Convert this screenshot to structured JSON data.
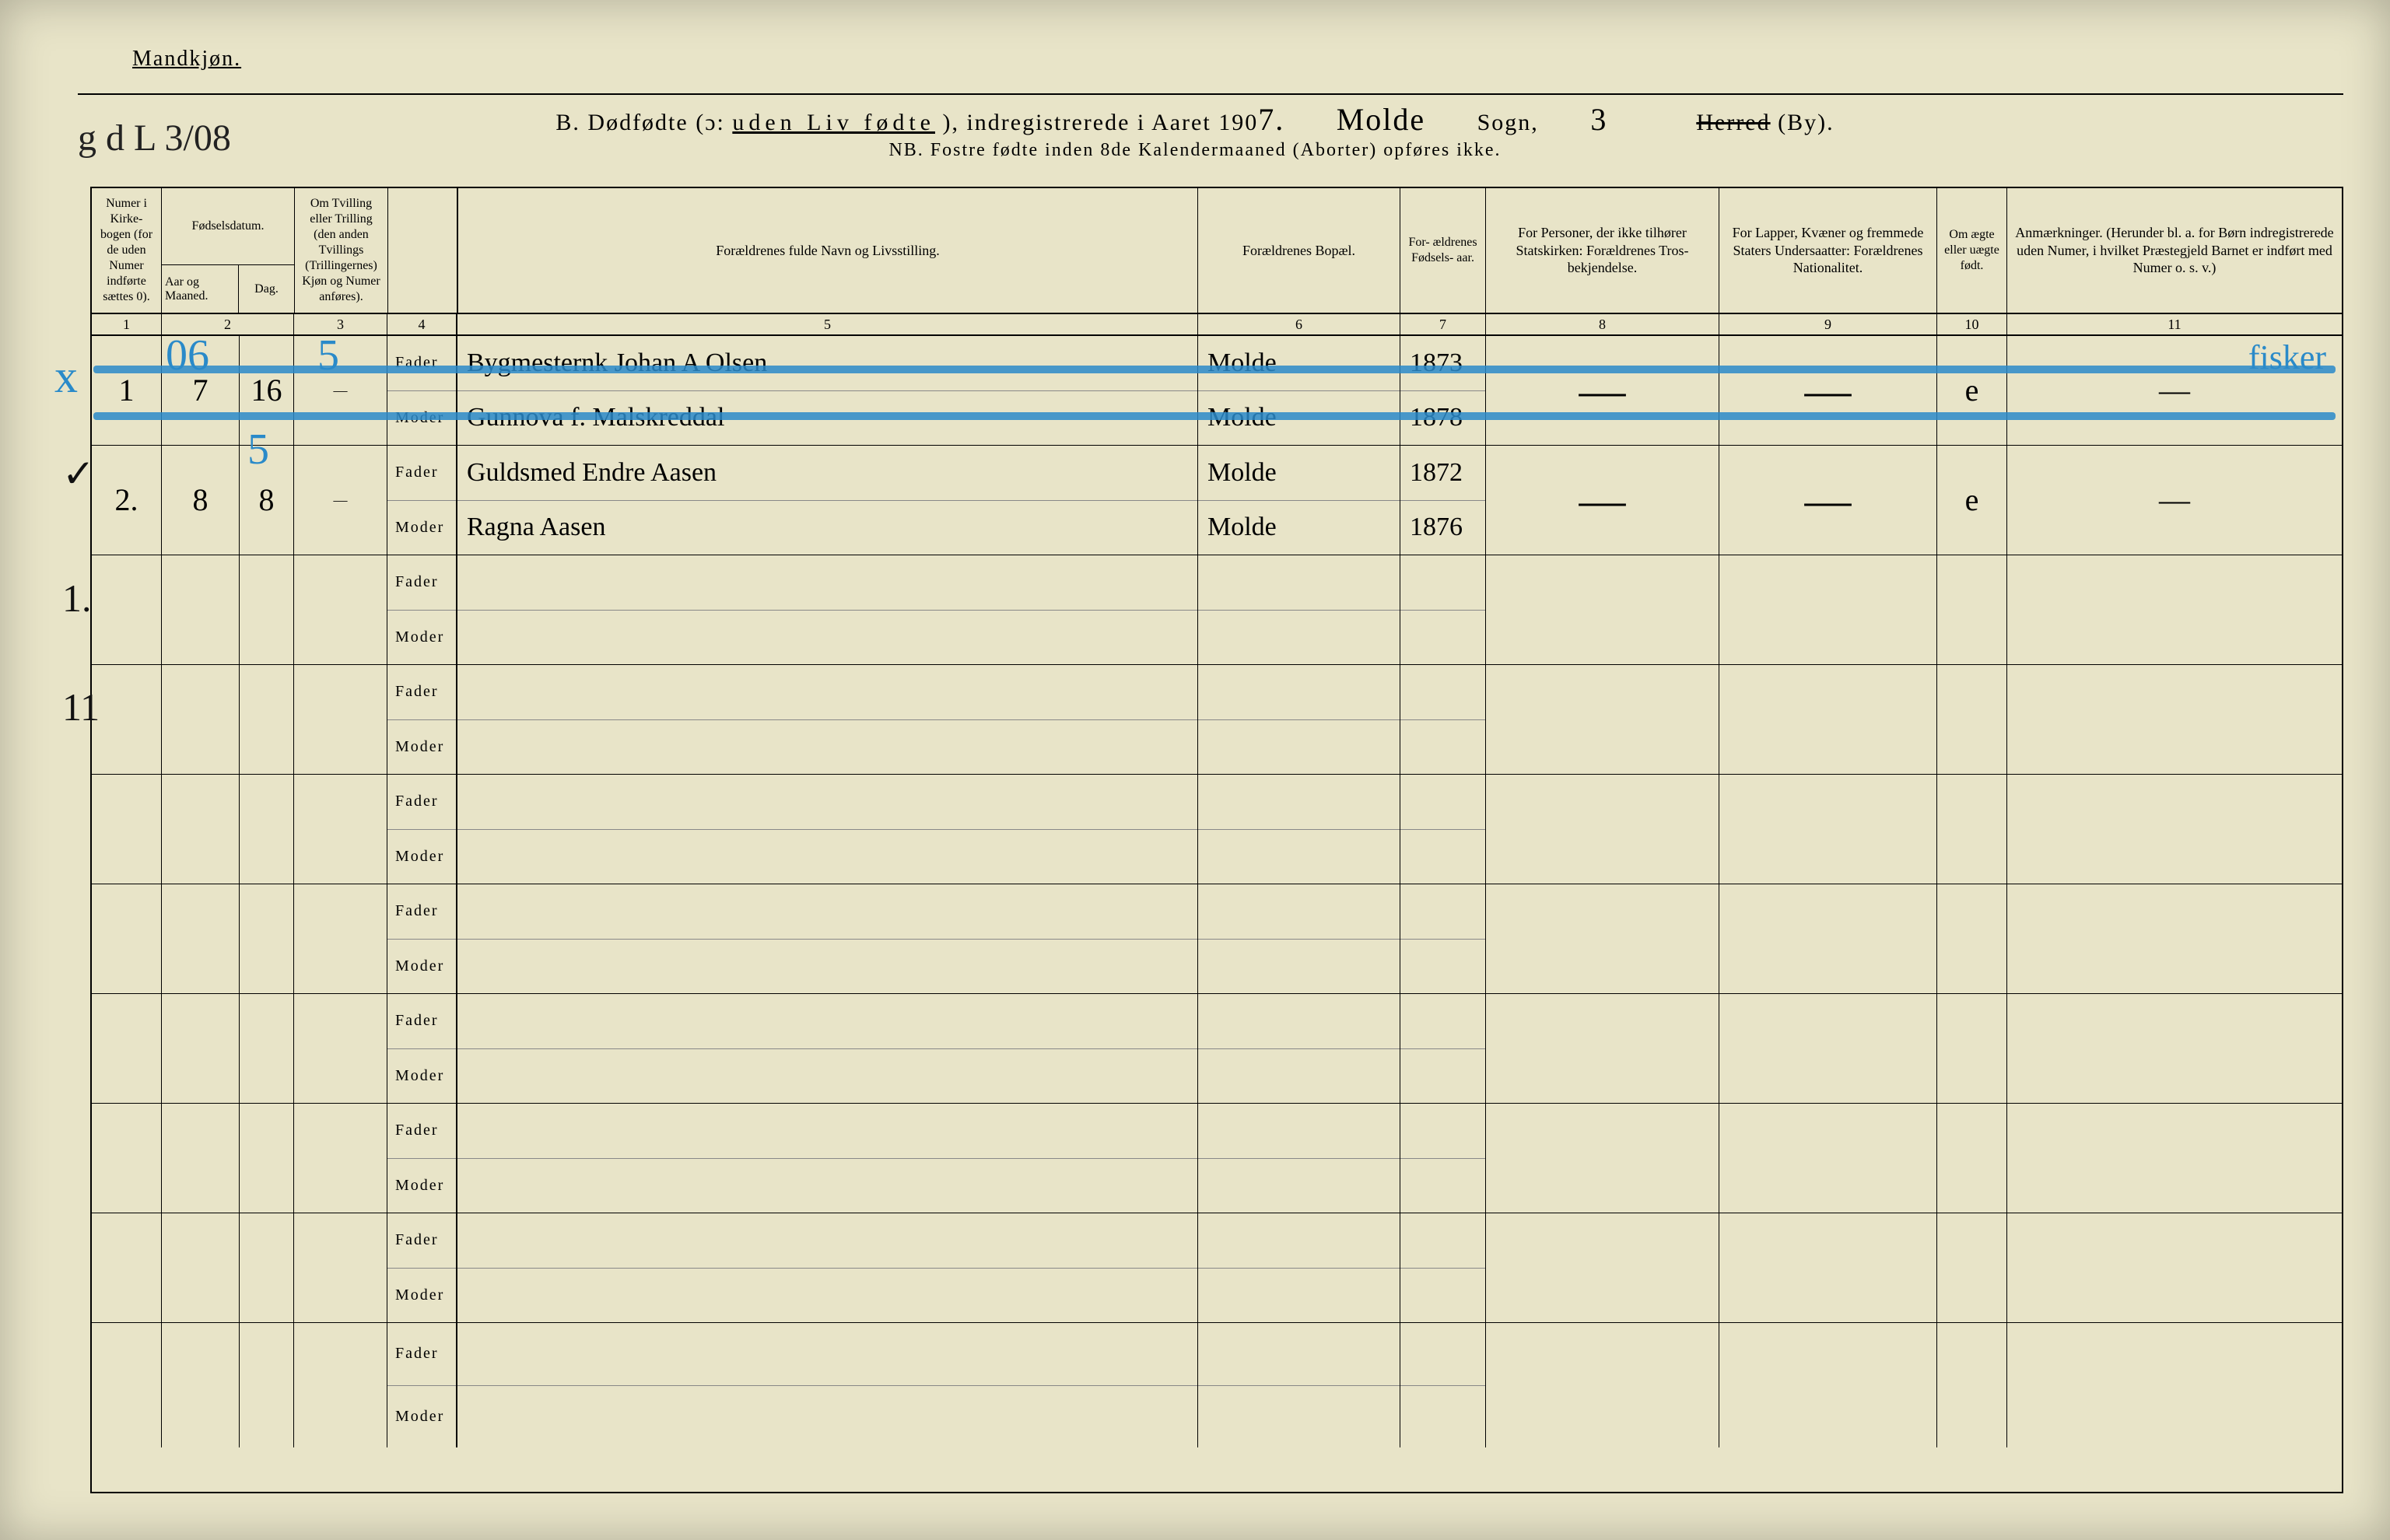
{
  "page": {
    "background_color": "#e8e4c8",
    "ink_color": "#000000",
    "blue_pencil_color": "#2a8ac9",
    "heading_gender": "Mandkjøn.",
    "title_prefix": "B.   Dødfødte (ɔ: ",
    "title_spaced": "uden Liv fødte",
    "title_mid": "), indregistrerede i Aaret 190",
    "title_year_hw": "7.",
    "title_parish_hw": "Molde",
    "title_sogn": "Sogn,",
    "title_num_hw": "3",
    "title_herred": "Herred",
    "title_by": "(By).",
    "nb": "NB.  Fostre fødte inden 8de Kalendermaaned (Aborter) opføres ikke.",
    "top_left_annot": "g d L 3/08",
    "columns": {
      "c1": "Numer i Kirke- bogen (for de uden Numer indførte sættes 0).",
      "c2_top": "Fødselsdatum.",
      "c2a": "Aar og Maaned.",
      "c2b": "Dag.",
      "c3": "Om Tvilling eller Trilling (den anden Tvillings (Trillingernes) Kjøn og Numer anføres).",
      "c4_fader": "Fader",
      "c4_moder": "Moder",
      "c5": "Forældrenes fulde Navn og Livsstilling.",
      "c6": "Forældrenes Bopæl.",
      "c7": "For- ældrenes Fødsels- aar.",
      "c8": "For Personer, der ikke tilhører Statskirken: Forældrenes Tros- bekjendelse.",
      "c9": "For Lapper, Kvæner og fremmede Staters Undersaatter: Forældrenes Nationalitet.",
      "c10": "Om ægte eller uægte født.",
      "c11": "Anmærkninger. (Herunder bl. a. for Børn indregistrerede uden Numer, i hvilket Præstegjeld Barnet er indført med Numer o. s. v.)"
    },
    "colnums": [
      "1",
      "2",
      "3",
      "4",
      "5",
      "6",
      "7",
      "8",
      "9",
      "10",
      "11"
    ],
    "rows": [
      {
        "no": "1",
        "aar_mnd": "7",
        "dag": "16",
        "c3": "—",
        "fader": "Bygmesternk Johan A Olsen",
        "moder": "Gunnova f. Malskreddal",
        "bopael_f": "Molde",
        "bopael_m": "Molde",
        "aar_f": "1873",
        "aar_m": "1878",
        "c10": "e",
        "c11": "—",
        "struck": true,
        "margin_blue": "x",
        "col2_blue_overlay": "06",
        "col3_blue_overlay": "5",
        "col11_blue_overlay": "fisker"
      },
      {
        "no": "2.",
        "aar_mnd": "8",
        "dag": "8",
        "c3": "—",
        "fader": "Guldsmed Endre Aasen",
        "moder": "Ragna Aasen",
        "bopael_f": "Molde",
        "bopael_m": "Molde",
        "aar_f": "1872",
        "aar_m": "1876",
        "c10": "e",
        "c11": "—",
        "struck": false,
        "margin_tick": "✓",
        "col2b_blue_overlay": "5"
      },
      {
        "no": "",
        "margin_mark": "1."
      },
      {
        "no": "",
        "margin_mark": "11"
      },
      {},
      {},
      {},
      {},
      {},
      {}
    ]
  }
}
